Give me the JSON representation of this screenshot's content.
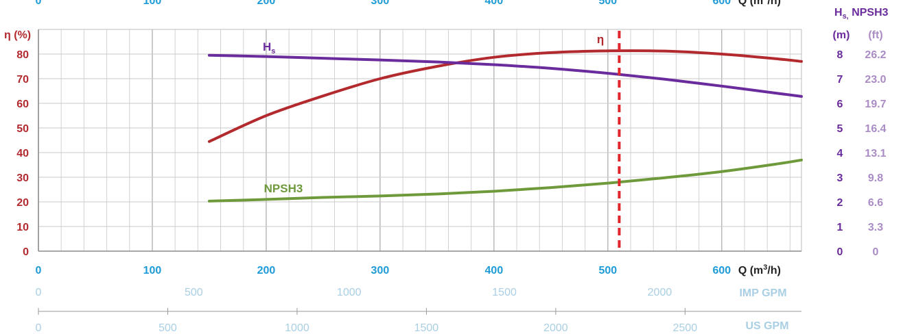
{
  "chart_data": {
    "type": "line",
    "x_unit_label": "Q (m",
    "x_unit_sup": "3",
    "x_unit_close": "/h)",
    "x_ticks": [
      0,
      100,
      200,
      300,
      400,
      500,
      600
    ],
    "xlim": [
      0,
      670
    ],
    "left_axis": {
      "label": "η (%)",
      "ticks": [
        0,
        10,
        20,
        30,
        40,
        50,
        60,
        70,
        80
      ],
      "ylim": [
        0,
        90
      ]
    },
    "right_axis": {
      "header_main": "H",
      "header_sub": "s,",
      "header_rest": " NPSH3",
      "unit_m": "(m)",
      "unit_ft": "(ft)",
      "m_ticks": [
        "0",
        "1",
        "2",
        "3",
        "4",
        "5",
        "6",
        "7",
        "8"
      ],
      "ft_ticks": [
        "0",
        "3.3",
        "6.6",
        "9.8",
        "13.1",
        "16.4",
        "19.7",
        "23.0",
        "26.2"
      ]
    },
    "imp_gpm": {
      "label": "IMP GPM",
      "ticks": [
        "0",
        "500",
        "1000",
        "1500",
        "2000"
      ],
      "tick_values": [
        0,
        500,
        1000,
        1500,
        2000
      ],
      "per_m3h": 3.666
    },
    "us_gpm": {
      "label": "US GPM",
      "ticks": [
        "0",
        "500",
        "1000",
        "1500",
        "2000",
        "2500"
      ],
      "tick_values": [
        0,
        500,
        1000,
        1500,
        2000,
        2500
      ],
      "per_m3h": 4.403
    },
    "series": [
      {
        "name": "η",
        "axis": "left",
        "unit": "%",
        "color": "#b22a2e",
        "x": [
          150,
          200,
          250,
          300,
          350,
          400,
          450,
          500,
          550,
          600,
          650,
          670
        ],
        "y": [
          44.5,
          55,
          63,
          70,
          75,
          78.7,
          80.6,
          81.3,
          81.2,
          80,
          78,
          77
        ]
      },
      {
        "name": "H",
        "name_sub": "s",
        "axis": "right",
        "unit": "m",
        "color": "#6a2c9c",
        "x": [
          150,
          200,
          250,
          300,
          350,
          400,
          450,
          500,
          550,
          600,
          650,
          670
        ],
        "y": [
          7.95,
          7.9,
          7.83,
          7.76,
          7.68,
          7.57,
          7.42,
          7.22,
          6.98,
          6.7,
          6.4,
          6.28
        ]
      },
      {
        "name": "NPSH3",
        "axis": "right",
        "unit": "m",
        "color": "#6e9a3c",
        "x": [
          150,
          200,
          250,
          300,
          350,
          400,
          450,
          500,
          550,
          600,
          650,
          670
        ],
        "y": [
          2.03,
          2.1,
          2.18,
          2.24,
          2.32,
          2.43,
          2.58,
          2.76,
          2.98,
          3.23,
          3.55,
          3.7
        ]
      }
    ],
    "design_point": {
      "x": 510,
      "color": "#e0262b",
      "style": "dashed"
    },
    "grid": true,
    "colors": {
      "efficiency": "#b22a2e",
      "head_m": "#6a2c9c",
      "head_ft": "#a98cc4",
      "q_m3h": "#1e9bd7",
      "gpm": "#a9cfe4"
    }
  }
}
